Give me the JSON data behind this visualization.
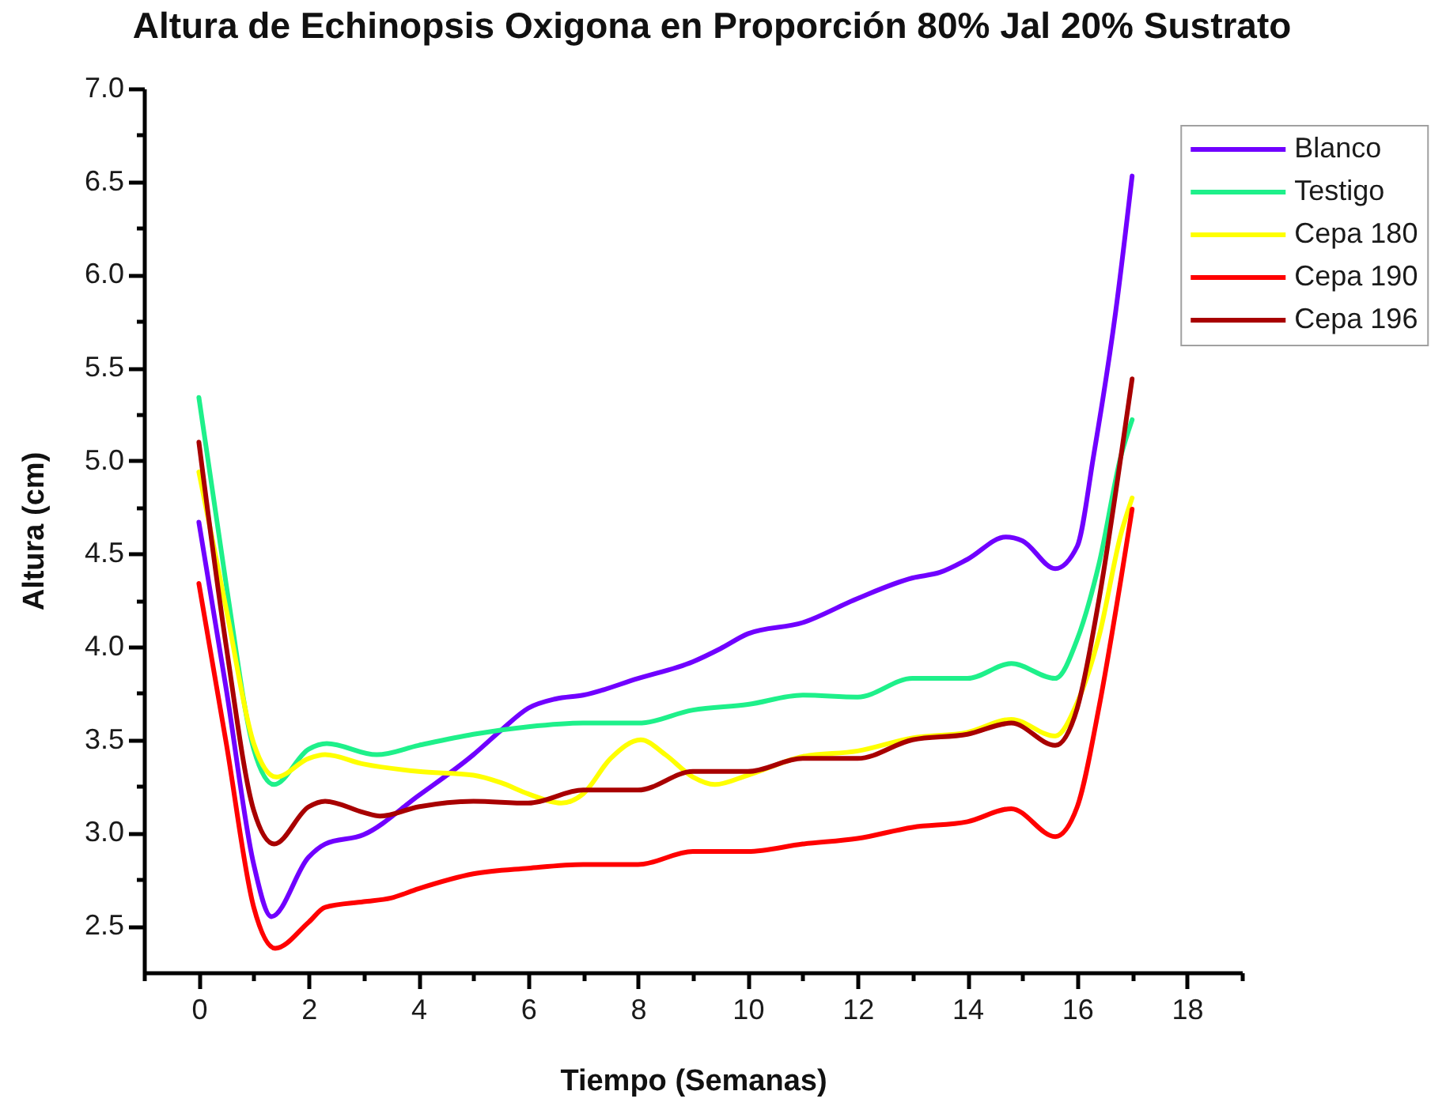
{
  "chart_data": {
    "type": "line",
    "title": "Altura de Echinopsis Oxigona en Proporción 80% Jal 20% Sustrato",
    "xlabel": "Tiempo (Semanas)",
    "ylabel": "Altura (cm)",
    "xlim": [
      -1,
      19
    ],
    "ylim": [
      2.25,
      7
    ],
    "xticks": [
      {
        "value": -1,
        "label": null
      },
      0,
      {
        "value": 1,
        "label": null
      },
      2,
      {
        "value": 3,
        "label": null
      },
      4,
      {
        "value": 5,
        "label": null
      },
      6,
      {
        "value": 7,
        "label": null
      },
      8,
      {
        "value": 9,
        "label": null
      },
      10,
      {
        "value": 11,
        "label": null
      },
      12,
      {
        "value": 13,
        "label": null
      },
      14,
      {
        "value": 15,
        "label": null
      },
      16,
      {
        "value": 17,
        "label": null
      },
      18,
      {
        "value": 19,
        "label": null
      }
    ],
    "yticks": [
      2.5,
      {
        "value": 2.75,
        "label": null
      },
      {
        "value": 3,
        "label": "3.0"
      },
      {
        "value": 3.25,
        "label": null
      },
      3.5,
      {
        "value": 3.75,
        "label": null
      },
      {
        "value": 4,
        "label": "4.0"
      },
      {
        "value": 4.25,
        "label": null
      },
      4.5,
      {
        "value": 4.75,
        "label": null
      },
      {
        "value": 5,
        "label": "5.0"
      },
      {
        "value": 5.25,
        "label": null
      },
      5.5,
      {
        "value": 5.75,
        "label": null
      },
      {
        "value": 6,
        "label": "6.0"
      },
      {
        "value": 6.25,
        "label": null
      },
      6.5,
      {
        "value": 6.75,
        "label": null
      },
      {
        "value": 7,
        "label": "7.0"
      }
    ],
    "legend": "top right",
    "series": [
      {
        "name": "Blanco",
        "color": "#7000ff",
        "x": [
          0,
          0.5,
          1,
          1.32,
          2,
          2.3,
          3,
          4,
          5,
          5.5,
          6,
          6.5,
          7,
          8,
          9,
          9.5,
          10,
          11,
          12,
          13,
          13.5,
          14,
          14.7,
          15,
          15.6,
          16,
          16.3,
          16.7,
          17
        ],
        "values": [
          4.67,
          3.77,
          2.83,
          2.55,
          2.87,
          2.94,
          2.99,
          3.2,
          3.42,
          3.55,
          3.67,
          3.72,
          3.74,
          3.83,
          3.92,
          3.99,
          4.07,
          4.13,
          4.26,
          4.37,
          4.4,
          4.47,
          4.59,
          4.57,
          4.42,
          4.54,
          5.03,
          5.8,
          6.53
        ]
      },
      {
        "name": "Testigo",
        "color": "#1ef08a",
        "x": [
          0,
          0.5,
          1,
          1.37,
          2,
          2.33,
          3.24,
          4,
          5,
          6,
          7,
          8,
          9,
          10,
          11,
          12,
          13,
          14,
          14.8,
          15.6,
          16,
          16.4,
          16.8,
          17
        ],
        "values": [
          5.34,
          4.33,
          3.45,
          3.26,
          3.45,
          3.48,
          3.42,
          3.47,
          3.53,
          3.57,
          3.59,
          3.59,
          3.66,
          3.69,
          3.74,
          3.73,
          3.83,
          3.83,
          3.91,
          3.83,
          4.04,
          4.45,
          5.03,
          5.22
        ]
      },
      {
        "name": "Cepa 180",
        "color": "#ffff00",
        "x": [
          0,
          0.5,
          1,
          1.41,
          2,
          2.3,
          3,
          4,
          5,
          5.5,
          6,
          6.6,
          7,
          7.5,
          8.05,
          8.5,
          9,
          9.4,
          10,
          11,
          12,
          13,
          14,
          14.8,
          15.6,
          16,
          16.4,
          16.8,
          17
        ],
        "values": [
          4.94,
          4.2,
          3.48,
          3.3,
          3.4,
          3.42,
          3.37,
          3.33,
          3.31,
          3.27,
          3.21,
          3.16,
          3.21,
          3.4,
          3.5,
          3.42,
          3.3,
          3.26,
          3.31,
          3.41,
          3.44,
          3.51,
          3.54,
          3.61,
          3.52,
          3.7,
          4.06,
          4.61,
          4.8
        ]
      },
      {
        "name": "Cepa 190",
        "color": "#ff0000",
        "x": [
          0,
          0.5,
          1,
          1.39,
          2,
          2.3,
          3,
          3.5,
          4,
          5,
          6,
          7,
          8,
          9,
          10,
          11,
          12,
          13,
          14,
          14.8,
          15.6,
          16,
          16.4,
          16.8,
          17
        ],
        "values": [
          4.34,
          3.48,
          2.6,
          2.38,
          2.52,
          2.6,
          2.63,
          2.65,
          2.7,
          2.78,
          2.81,
          2.83,
          2.83,
          2.9,
          2.9,
          2.94,
          2.97,
          3.03,
          3.06,
          3.13,
          2.98,
          3.14,
          3.68,
          4.37,
          4.74
        ]
      },
      {
        "name": "Cepa 196",
        "color": "#a80000",
        "x": [
          0,
          0.5,
          1,
          1.37,
          2,
          2.3,
          3,
          3.3,
          4,
          5,
          6,
          7,
          8,
          9,
          10,
          11,
          12,
          13,
          14,
          14.8,
          15.6,
          16,
          16.4,
          16.8,
          17
        ],
        "values": [
          5.1,
          4.0,
          3.12,
          2.94,
          3.14,
          3.17,
          3.11,
          3.09,
          3.14,
          3.17,
          3.16,
          3.23,
          3.23,
          3.33,
          3.33,
          3.4,
          3.4,
          3.5,
          3.53,
          3.59,
          3.47,
          3.67,
          4.26,
          5.03,
          5.44
        ]
      }
    ]
  }
}
